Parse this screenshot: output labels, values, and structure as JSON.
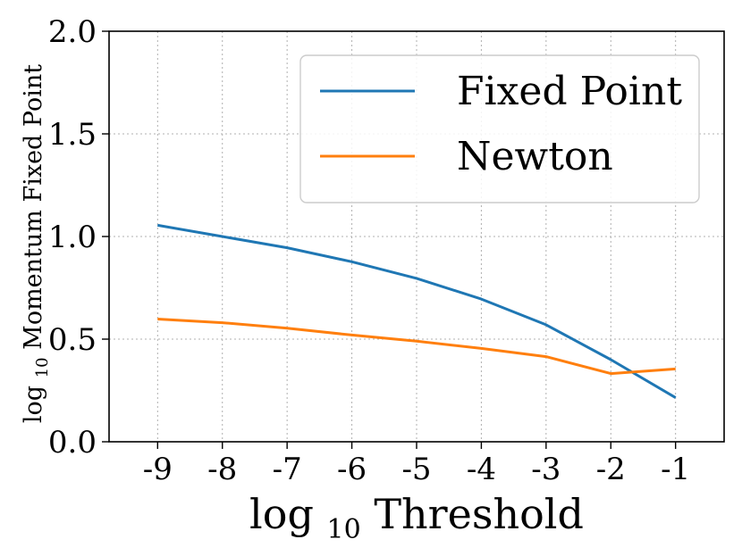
{
  "chart_data": {
    "type": "line",
    "x": [
      -9,
      -8,
      -7,
      -6,
      -5,
      -4,
      -3,
      -2,
      -1
    ],
    "x_tick_labels": [
      "-9",
      "-8",
      "-7",
      "-6",
      "-5",
      "-4",
      "-3",
      "-2",
      "-1"
    ],
    "xlim": [
      -9.75,
      -0.25
    ],
    "ylim": [
      0.0,
      2.0
    ],
    "y_ticks": [
      0.0,
      0.5,
      1.0,
      1.5,
      2.0
    ],
    "y_tick_labels": [
      "0.0",
      "0.5",
      "1.0",
      "1.5",
      "2.0"
    ],
    "xlabel": {
      "prefix": "log",
      "subscript": "10",
      "suffix": " Threshold"
    },
    "ylabel": {
      "prefix": "log",
      "subscript": "10",
      "suffix": " Momentum Fixed Point"
    },
    "grid": true,
    "legend_position": "top-right",
    "series": [
      {
        "name": "Fixed Point",
        "color": "#1f77b4",
        "values": [
          1.055,
          1.0,
          0.945,
          0.877,
          0.796,
          0.695,
          0.57,
          0.4,
          0.215
        ]
      },
      {
        "name": "Newton",
        "color": "#ff7f0e",
        "values": [
          0.598,
          0.58,
          0.553,
          0.52,
          0.49,
          0.455,
          0.415,
          0.332,
          0.355
        ]
      }
    ]
  }
}
